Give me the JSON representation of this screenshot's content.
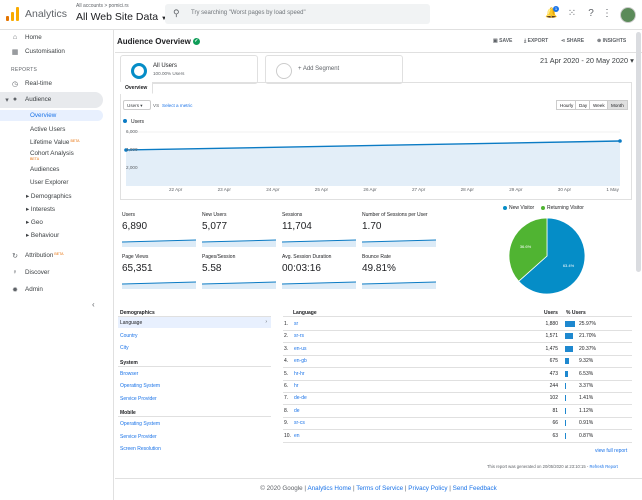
{
  "app": {
    "name": "Analytics",
    "breadcrumb": "All accounts > pomici.rs",
    "account": "All Web Site Data",
    "search_placeholder": "Try searching \"Worst pages by load speed\"",
    "notification_count": "1"
  },
  "sidebar": {
    "top": [
      {
        "label": "Home",
        "icon": "home-icon"
      },
      {
        "label": "Customisation",
        "icon": "grid-icon"
      }
    ],
    "reports_heading": "REPORTS",
    "realtime": "Real-time",
    "audience": "Audience",
    "audience_items": [
      "Overview",
      "Active Users",
      "Lifetime Value",
      "Cohort Analysis",
      "Audiences",
      "User Explorer",
      "Demographics",
      "Interests",
      "Geo",
      "Behaviour"
    ],
    "beta": "BETA",
    "bottom": [
      {
        "label": "Attribution",
        "icon": "attribution-icon"
      },
      {
        "label": "Discover",
        "icon": "bulb-icon"
      },
      {
        "label": "Admin",
        "icon": "gear-icon"
      }
    ]
  },
  "header": {
    "title": "Audience Overview",
    "actions": [
      "SAVE",
      "EXPORT",
      "SHARE",
      "INSIGHTS"
    ]
  },
  "segments": {
    "all_users": "All Users",
    "all_users_sub": "100.00% Users",
    "add_segment": "+ Add Segment"
  },
  "date_range": "21 Apr 2020 - 20 May 2020",
  "overview_tab": "Overview",
  "controls": {
    "metric": "Users",
    "vs": "VS",
    "select_metric": "Select a metric",
    "granularity": [
      "Hourly",
      "Day",
      "Week",
      "Month"
    ],
    "active_granularity": "Month"
  },
  "chart_data": [
    {
      "type": "line",
      "series": [
        {
          "name": "Users",
          "color": "#0b7bc4",
          "x": [
            "21 Apr",
            "20 May"
          ],
          "values": [
            4000,
            5000
          ]
        }
      ],
      "y_ticks": [
        "6,000",
        "4,000",
        "2,000"
      ],
      "ylim": [
        0,
        6000
      ],
      "x_ticks": [
        "22 Apr",
        "23 Apr",
        "24 Apr",
        "25 Apr",
        "26 Apr",
        "27 Apr",
        "28 Apr",
        "29 Apr",
        "30 Apr",
        "1 May"
      ],
      "grid": true
    },
    {
      "type": "pie",
      "categories": [
        "New Visitor",
        "Returning Visitor"
      ],
      "values": [
        63.4,
        36.6
      ],
      "labels": [
        "63.4%",
        "36.6%"
      ],
      "colors": [
        "#058dc7",
        "#50b432"
      ],
      "legend": "top"
    }
  ],
  "kpis": [
    {
      "label": "Users",
      "value": "6,890"
    },
    {
      "label": "New Users",
      "value": "5,077"
    },
    {
      "label": "Sessions",
      "value": "11,704"
    },
    {
      "label": "Number of Sessions per User",
      "value": "1.70"
    },
    {
      "label": "Page Views",
      "value": "65,351"
    },
    {
      "label": "Pages/Session",
      "value": "5.58"
    },
    {
      "label": "Avg. Session Duration",
      "value": "00:03:16"
    },
    {
      "label": "Bounce Rate",
      "value": "49.81%"
    }
  ],
  "dimensions": {
    "demographics": "Demographics",
    "language": "Language",
    "country": "Country",
    "city": "City",
    "system": "System",
    "browser": "Browser",
    "os": "Operating System",
    "provider": "Service Provider",
    "mobile": "Mobile",
    "mobile_os": "Operating System",
    "mobile_provider": "Service Provider",
    "resolution": "Screen Resolution"
  },
  "language_table": {
    "headers": [
      "Language",
      "Users",
      "% Users"
    ],
    "rows": [
      {
        "n": "1.",
        "lang": "sr",
        "users": "1,880",
        "pct": "25.97%",
        "share": 25.97
      },
      {
        "n": "2.",
        "lang": "sr-rs",
        "users": "1,571",
        "pct": "21.70%",
        "share": 21.7
      },
      {
        "n": "3.",
        "lang": "en-us",
        "users": "1,475",
        "pct": "20.37%",
        "share": 20.37
      },
      {
        "n": "4.",
        "lang": "en-gb",
        "users": "675",
        "pct": "9.32%",
        "share": 9.32
      },
      {
        "n": "5.",
        "lang": "hr-hr",
        "users": "473",
        "pct": "6.53%",
        "share": 6.53
      },
      {
        "n": "6.",
        "lang": "hr",
        "users": "244",
        "pct": "3.37%",
        "share": 3.37
      },
      {
        "n": "7.",
        "lang": "de-de",
        "users": "102",
        "pct": "1.41%",
        "share": 1.41
      },
      {
        "n": "8.",
        "lang": "de",
        "users": "81",
        "pct": "1.12%",
        "share": 1.12
      },
      {
        "n": "9.",
        "lang": "sr-cs",
        "users": "66",
        "pct": "0.91%",
        "share": 0.91
      },
      {
        "n": "10.",
        "lang": "en",
        "users": "63",
        "pct": "0.87%",
        "share": 0.87
      }
    ],
    "view_full": "view full report"
  },
  "generated": "This report was generated on 20/05/2020 at 23:10:15 -",
  "refresh": "Refresh Report",
  "footer": {
    "copyright": "© 2020 Google |",
    "links": [
      "Analytics Home",
      "Terms of Service",
      "Privacy Policy",
      "Send Feedback"
    ]
  }
}
